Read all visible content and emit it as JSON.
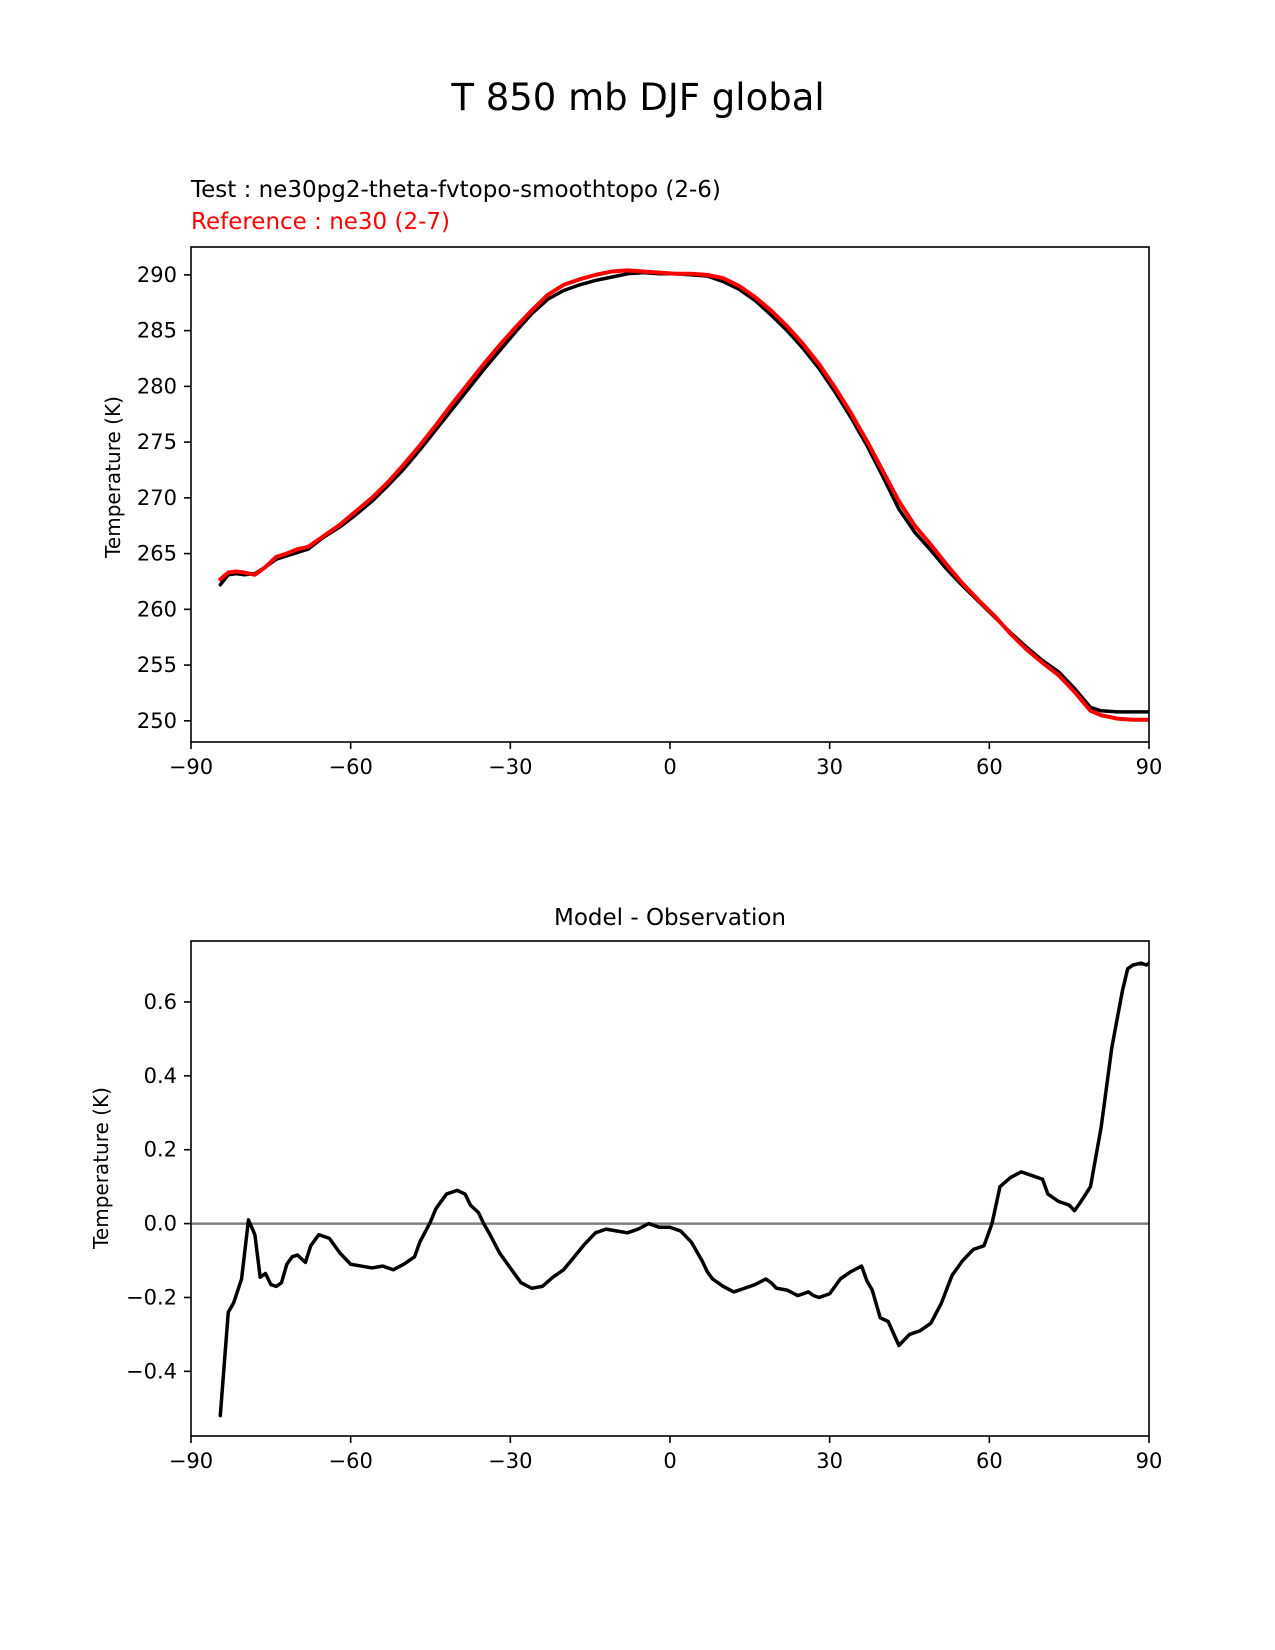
{
  "figure": {
    "suptitle": "T 850 mb DJF global"
  },
  "chart_data": [
    {
      "type": "line",
      "title": "",
      "test_label": "Test : ne30pg2-theta-fvtopo-smoothtopo (2-6)",
      "reference_label": "Reference : ne30 (2-7)",
      "xlabel": "",
      "ylabel": "Temperature (K)",
      "xlim": [
        -90,
        90
      ],
      "ylim": [
        248.1,
        292.5
      ],
      "xticks": [
        -90,
        -60,
        -30,
        0,
        30,
        60,
        90
      ],
      "xtick_labels": [
        "−90",
        "−60",
        "−30",
        "0",
        "30",
        "60",
        "90"
      ],
      "yticks": [
        250,
        255,
        260,
        265,
        270,
        275,
        280,
        285,
        290
      ],
      "ytick_labels": [
        "250",
        "255",
        "260",
        "265",
        "270",
        "275",
        "280",
        "285",
        "290"
      ],
      "colors": {
        "test": "#000000",
        "reference": "#ff0000"
      },
      "series": [
        {
          "role": "test",
          "x": [
            -84.5,
            -83,
            -81.5,
            -80,
            -78,
            -76,
            -74,
            -72,
            -70,
            -68,
            -65,
            -62,
            -59,
            -56,
            -53,
            -50,
            -47,
            -44,
            -41,
            -38,
            -35,
            -32,
            -29,
            -26,
            -23,
            -20,
            -17,
            -14,
            -11,
            -8,
            -5,
            -2,
            1,
            4,
            7,
            10,
            13,
            16,
            19,
            22,
            25,
            28,
            31,
            34,
            37,
            40,
            43,
            46,
            49,
            52,
            55,
            58,
            61,
            64,
            67,
            70,
            73,
            76,
            79,
            81,
            84,
            87,
            90
          ],
          "y": [
            262.2,
            263.1,
            263.2,
            263.1,
            263.2,
            263.8,
            264.5,
            264.8,
            265.1,
            265.4,
            266.5,
            267.4,
            268.5,
            269.7,
            271.1,
            272.6,
            274.3,
            276.1,
            277.9,
            279.7,
            281.5,
            283.2,
            284.9,
            286.5,
            287.8,
            288.6,
            289.1,
            289.5,
            289.8,
            290.1,
            290.2,
            290.1,
            290.1,
            290.0,
            289.9,
            289.4,
            288.7,
            287.7,
            286.4,
            285.0,
            283.4,
            281.6,
            279.5,
            277.2,
            274.7,
            271.9,
            269.0,
            266.9,
            265.3,
            263.6,
            262.1,
            260.7,
            259.3,
            257.9,
            256.6,
            255.4,
            254.4,
            252.9,
            251.2,
            250.9,
            250.8,
            250.8,
            250.8
          ]
        },
        {
          "role": "reference",
          "x": [
            -84.5,
            -83,
            -81.5,
            -80,
            -78,
            -76,
            -74,
            -72,
            -70,
            -68,
            -65,
            -62,
            -59,
            -56,
            -53,
            -50,
            -47,
            -44,
            -41,
            -38,
            -35,
            -32,
            -29,
            -26,
            -23,
            -20,
            -17,
            -14,
            -11,
            -8,
            -5,
            -2,
            1,
            4,
            7,
            10,
            13,
            16,
            19,
            22,
            25,
            28,
            31,
            34,
            37,
            40,
            43,
            46,
            49,
            52,
            55,
            58,
            61,
            64,
            67,
            70,
            73,
            76,
            79,
            81,
            84,
            87,
            90
          ],
          "y": [
            262.7,
            263.3,
            263.4,
            263.3,
            263.1,
            263.8,
            264.7,
            265.0,
            265.4,
            265.6,
            266.6,
            267.6,
            268.8,
            270.0,
            271.4,
            273.0,
            274.7,
            276.5,
            278.4,
            280.2,
            282.0,
            283.7,
            285.3,
            286.8,
            288.2,
            289.1,
            289.6,
            290.0,
            290.3,
            290.4,
            290.3,
            290.2,
            290.1,
            290.1,
            290.0,
            289.7,
            289.0,
            288.0,
            286.8,
            285.4,
            283.8,
            282.0,
            279.9,
            277.6,
            275.1,
            272.4,
            269.7,
            267.5,
            265.8,
            264.0,
            262.3,
            260.8,
            259.4,
            257.8,
            256.4,
            255.2,
            254.1,
            252.6,
            250.9,
            250.5,
            250.2,
            250.1,
            250.1
          ]
        }
      ]
    },
    {
      "type": "line",
      "title": "Model - Observation",
      "xlabel": "",
      "ylabel": "Temperature (K)",
      "xlim": [
        -90,
        90
      ],
      "ylim": [
        -0.575,
        0.765
      ],
      "xticks": [
        -90,
        -60,
        -30,
        0,
        30,
        60,
        90
      ],
      "xtick_labels": [
        "−90",
        "−60",
        "−30",
        "0",
        "30",
        "60",
        "90"
      ],
      "yticks": [
        -0.4,
        -0.2,
        0.0,
        0.2,
        0.4,
        0.6
      ],
      "ytick_labels": [
        "−0.4",
        "−0.2",
        "0.0",
        "0.2",
        "0.4",
        "0.6"
      ],
      "zero_line": 0,
      "colors": {
        "diff": "#000000",
        "zero": "#808080"
      },
      "series": [
        {
          "role": "diff",
          "x": [
            -84.5,
            -83,
            -82,
            -80.5,
            -79.2,
            -78,
            -77,
            -76,
            -75,
            -74,
            -73,
            -72,
            -71,
            -70,
            -68.5,
            -67.5,
            -66,
            -65,
            -64,
            -62,
            -60,
            -58,
            -56,
            -54,
            -52,
            -50,
            -48,
            -47,
            -45,
            -44,
            -42,
            -40,
            -38.5,
            -37.5,
            -36,
            -35,
            -34,
            -32,
            -30,
            -28,
            -26,
            -24,
            -22,
            -20,
            -18,
            -16,
            -14,
            -12,
            -10,
            -8,
            -6,
            -4,
            -2,
            0,
            2,
            4,
            6,
            7,
            8,
            10,
            12,
            14,
            16,
            18,
            19,
            20,
            22,
            24,
            26,
            27,
            28,
            30,
            32,
            34,
            36,
            37,
            38,
            39.5,
            41,
            43,
            45,
            47,
            49,
            51,
            53,
            55,
            57,
            59,
            60.5,
            62,
            64,
            66,
            68,
            70,
            71,
            73,
            75,
            76,
            77,
            79,
            81,
            83,
            85,
            86,
            87,
            88.5,
            89.5,
            90
          ],
          "y": [
            -0.52,
            -0.24,
            -0.215,
            -0.15,
            0.01,
            -0.03,
            -0.145,
            -0.135,
            -0.165,
            -0.17,
            -0.16,
            -0.11,
            -0.09,
            -0.085,
            -0.105,
            -0.06,
            -0.03,
            -0.035,
            -0.04,
            -0.08,
            -0.11,
            -0.115,
            -0.12,
            -0.115,
            -0.125,
            -0.11,
            -0.09,
            -0.05,
            0.005,
            0.04,
            0.08,
            0.09,
            0.08,
            0.05,
            0.03,
            0.0,
            -0.025,
            -0.08,
            -0.12,
            -0.16,
            -0.175,
            -0.17,
            -0.145,
            -0.125,
            -0.09,
            -0.055,
            -0.025,
            -0.015,
            -0.02,
            -0.025,
            -0.015,
            0.0,
            -0.01,
            -0.01,
            -0.02,
            -0.05,
            -0.1,
            -0.13,
            -0.15,
            -0.17,
            -0.185,
            -0.175,
            -0.165,
            -0.15,
            -0.16,
            -0.175,
            -0.18,
            -0.195,
            -0.185,
            -0.195,
            -0.2,
            -0.19,
            -0.15,
            -0.13,
            -0.115,
            -0.155,
            -0.18,
            -0.255,
            -0.265,
            -0.33,
            -0.3,
            -0.29,
            -0.27,
            -0.215,
            -0.14,
            -0.1,
            -0.07,
            -0.06,
            0.0,
            0.1,
            0.125,
            0.14,
            0.13,
            0.12,
            0.08,
            0.06,
            0.05,
            0.035,
            0.055,
            0.1,
            0.26,
            0.475,
            0.63,
            0.69,
            0.7,
            0.705,
            0.7,
            0.705
          ]
        }
      ]
    }
  ]
}
